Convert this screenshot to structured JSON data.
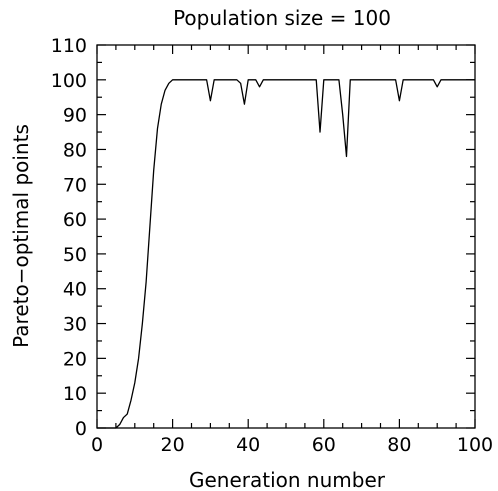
{
  "chart_data": {
    "type": "line",
    "title": "Population size = 100",
    "xlabel": "Generation number",
    "ylabel": "Pareto−optimal points",
    "xlim": [
      0,
      100
    ],
    "ylim": [
      0,
      110
    ],
    "xticks": [
      0,
      20,
      40,
      60,
      80,
      100
    ],
    "yticks": [
      0,
      10,
      20,
      30,
      40,
      50,
      60,
      70,
      80,
      90,
      100,
      110
    ],
    "grid": false,
    "series": [
      {
        "x": [
          0,
          1,
          2,
          3,
          4,
          5,
          6,
          7,
          8,
          9,
          10,
          11,
          12,
          13,
          14,
          15,
          16,
          17,
          18,
          19,
          20,
          21,
          22,
          23,
          24,
          25,
          26,
          27,
          28,
          29,
          30,
          31,
          32,
          33,
          34,
          35,
          36,
          37,
          38,
          39,
          40,
          41,
          42,
          43,
          44,
          45,
          46,
          47,
          48,
          49,
          50,
          51,
          52,
          53,
          54,
          55,
          56,
          57,
          58,
          59,
          60,
          61,
          62,
          63,
          64,
          65,
          66,
          67,
          68,
          69,
          70,
          71,
          72,
          73,
          74,
          75,
          76,
          77,
          78,
          79,
          80,
          81,
          82,
          83,
          84,
          85,
          86,
          87,
          88,
          89,
          90,
          91,
          92,
          93,
          94,
          95,
          96,
          97,
          98,
          99,
          100
        ],
        "y": [
          0,
          0,
          0,
          0,
          0,
          0,
          1,
          3,
          4,
          8,
          13,
          20,
          30,
          42,
          58,
          74,
          86,
          93,
          97,
          99,
          100,
          100,
          100,
          100,
          100,
          100,
          100,
          100,
          100,
          100,
          94,
          100,
          100,
          100,
          100,
          100,
          100,
          100,
          99,
          93,
          100,
          100,
          100,
          98,
          100,
          100,
          100,
          100,
          100,
          100,
          100,
          100,
          100,
          100,
          100,
          100,
          100,
          100,
          100,
          85,
          100,
          100,
          100,
          100,
          100,
          90,
          78,
          100,
          100,
          100,
          100,
          100,
          100,
          100,
          100,
          100,
          100,
          100,
          100,
          100,
          94,
          100,
          100,
          100,
          100,
          100,
          100,
          100,
          100,
          100,
          98,
          100,
          100,
          100,
          100,
          100,
          100,
          100,
          100,
          100,
          100
        ],
        "color": "#000000"
      }
    ]
  }
}
